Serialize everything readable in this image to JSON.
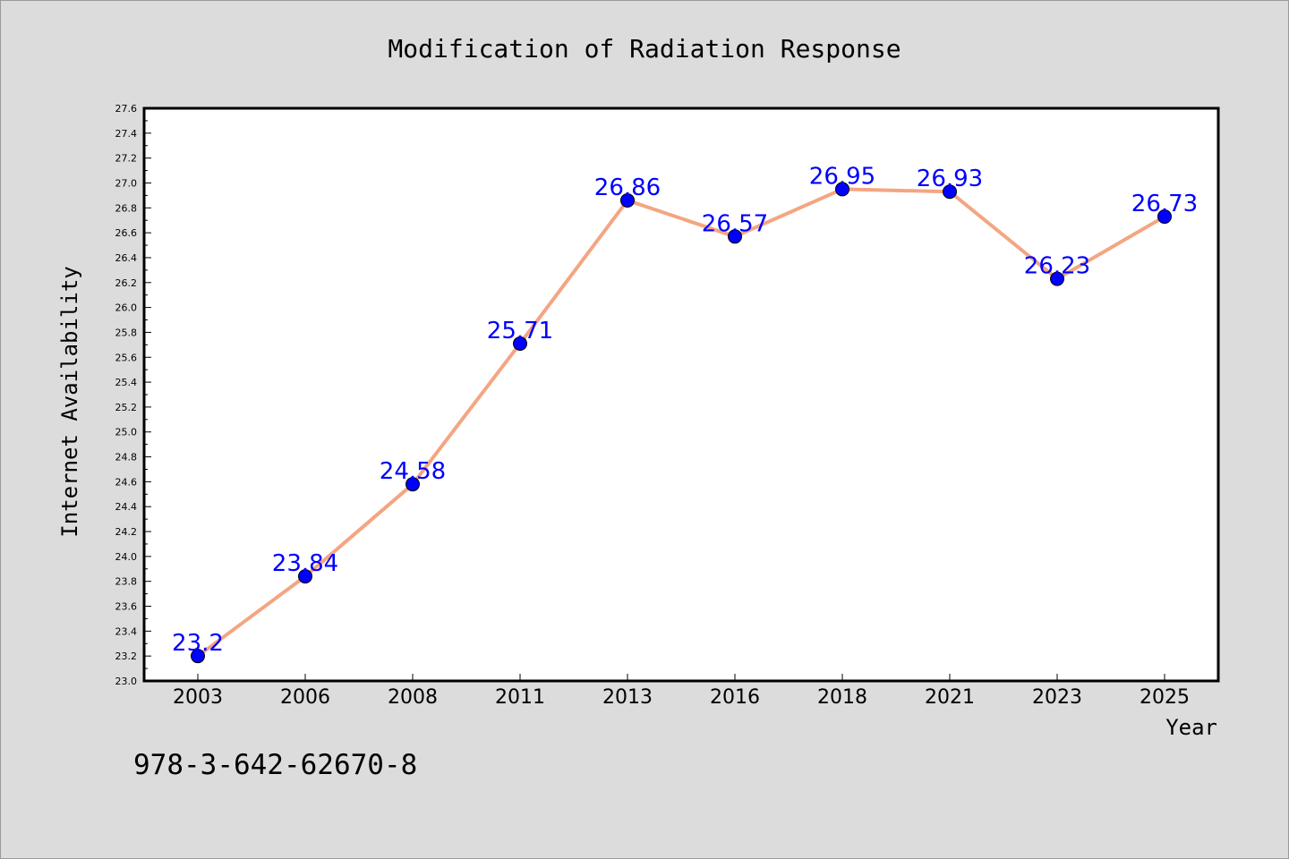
{
  "chart_data": {
    "type": "line",
    "title": "Modification of Radiation Response",
    "xlabel": "Year",
    "ylabel": "Internet Availability",
    "categories": [
      "2003",
      "2006",
      "2008",
      "2011",
      "2013",
      "2016",
      "2018",
      "2021",
      "2023",
      "2025"
    ],
    "series": [
      {
        "values": [
          23.2,
          23.84,
          24.58,
          25.71,
          26.86,
          26.57,
          26.95,
          26.93,
          26.23,
          26.73
        ],
        "labels": [
          "23.2",
          "23.84",
          "24.58",
          "25.71",
          "26.86",
          "26.57",
          "26.95",
          "26.93",
          "26.23",
          "26.73"
        ],
        "line_color": "#f4a582",
        "marker_color": "#0000ff"
      }
    ],
    "ylim": [
      23.0,
      27.6
    ],
    "yticks": [
      "23.0",
      "23.2",
      "23.4",
      "23.6",
      "23.8",
      "24.0",
      "24.2",
      "24.4",
      "24.6",
      "24.8",
      "25.0",
      "25.2",
      "25.4",
      "25.6",
      "25.8",
      "26.0",
      "26.2",
      "26.4",
      "26.6",
      "26.8",
      "27.0",
      "27.2",
      "27.4",
      "27.6"
    ],
    "grid": false,
    "legend": "none"
  },
  "footer": {
    "isbn": "978-3-642-62670-8"
  }
}
